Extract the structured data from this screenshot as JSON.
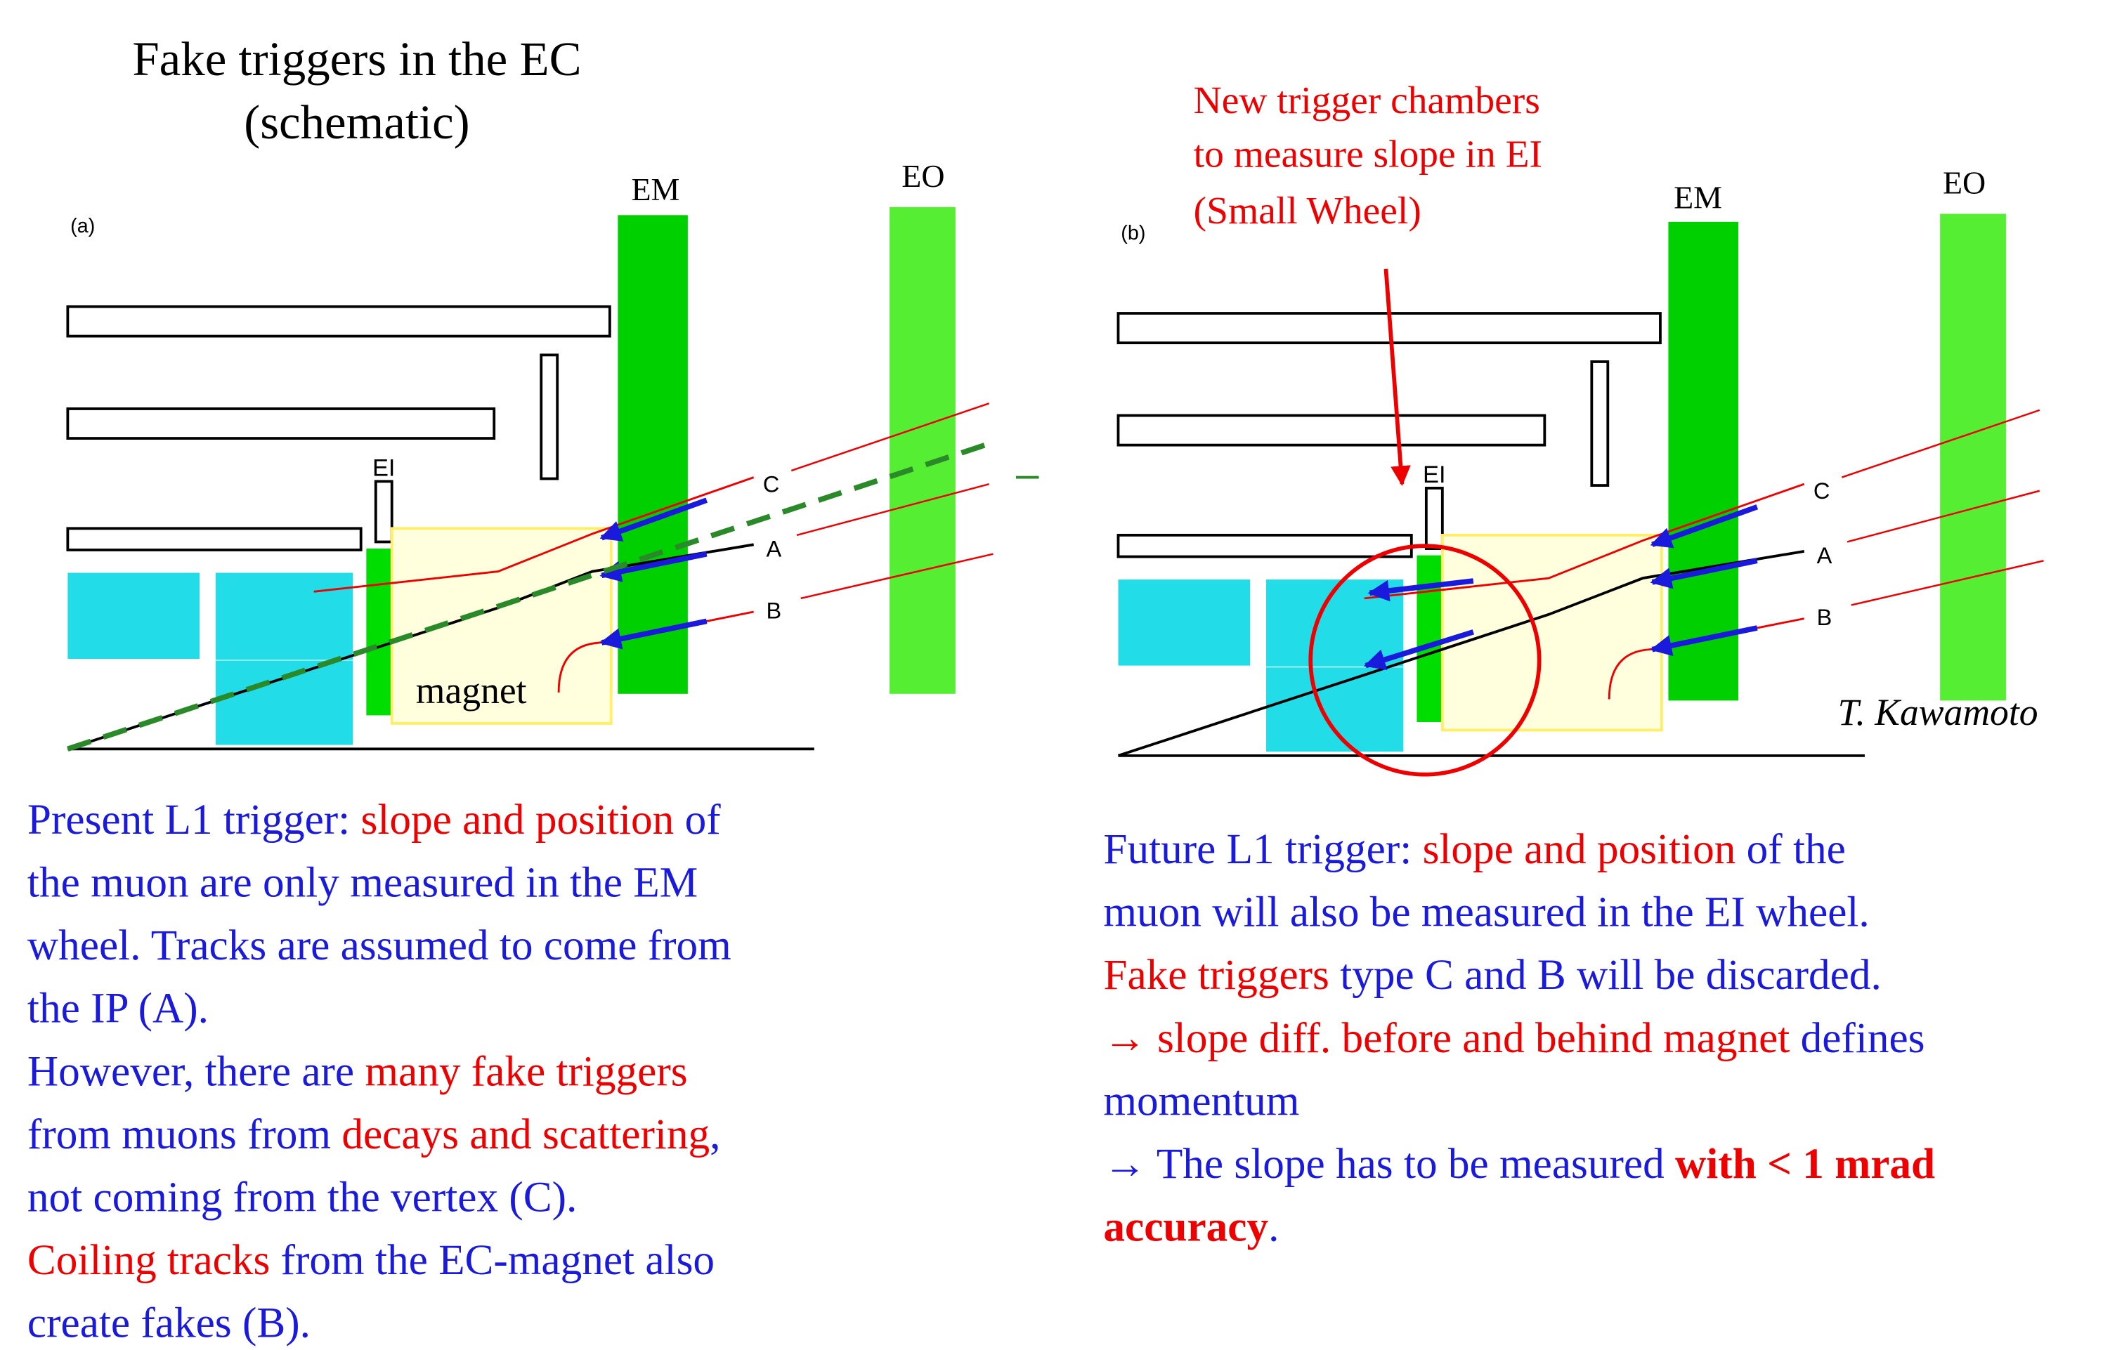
{
  "title": [
    "Fake triggers in the EC",
    "(schematic)"
  ],
  "left": {
    "panel": "(a)",
    "em": "EM",
    "eo": "EO",
    "ei": "EI",
    "magnet": "magnet",
    "c": "C",
    "a": "A",
    "b": "B",
    "lines": [
      [
        {
          "t": "Present L1 trigger: ",
          "c": "blue"
        },
        {
          "t": "slope and position",
          "c": "red"
        },
        {
          "t": " of",
          "c": "blue"
        }
      ],
      [
        {
          "t": "the muon are only measured in the EM",
          "c": "blue"
        }
      ],
      [
        {
          "t": "wheel. Tracks are assumed to come from",
          "c": "blue"
        }
      ],
      [
        {
          "t": "the IP (A).",
          "c": "blue"
        }
      ],
      [
        {
          "t": "However, there are ",
          "c": "blue"
        },
        {
          "t": "many fake triggers",
          "c": "red"
        }
      ],
      [
        {
          "t": "from muons from ",
          "c": "blue"
        },
        {
          "t": "decays and scattering",
          "c": "red"
        },
        {
          "t": ",",
          "c": "blue"
        }
      ],
      [
        {
          "t": "not coming from the vertex (C).",
          "c": "blue"
        }
      ],
      [
        {
          "t": "Coiling tracks",
          "c": "red"
        },
        {
          "t": " from the EC-magnet also",
          "c": "blue"
        }
      ],
      [
        {
          "t": "create fakes (B).",
          "c": "blue"
        }
      ]
    ]
  },
  "right": {
    "panel": "(b)",
    "em": "EM",
    "eo": "EO",
    "ei": "EI",
    "c": "C",
    "a": "A",
    "b": "B",
    "annotation": [
      "New trigger chambers",
      "to measure slope in EI",
      "(Small Wheel)"
    ],
    "credit": "T. Kawamoto",
    "lines": [
      [
        {
          "t": "Future L1 trigger: ",
          "c": "blue"
        },
        {
          "t": "slope and position",
          "c": "red"
        },
        {
          "t": " of the",
          "c": "blue"
        }
      ],
      [
        {
          "t": "muon will also be measured in the EI wheel.",
          "c": "blue"
        }
      ],
      [
        {
          "t": "Fake triggers",
          "c": "red"
        },
        {
          "t": " type C and B will be discarded.",
          "c": "blue"
        }
      ],
      [
        {
          "t": "→ slope diff. before and behind magnet",
          "c": "red"
        },
        {
          "t": " defines",
          "c": "blue"
        }
      ],
      [
        {
          "t": "momentum",
          "c": "blue"
        }
      ],
      [
        {
          "t": "→ The slope has to be measured ",
          "c": "blue"
        },
        {
          "t": "with < 1 mrad",
          "c": "red-bold"
        }
      ],
      [
        {
          "t": "accuracy",
          "c": "red-bold"
        },
        {
          "t": ".",
          "c": "blue"
        }
      ]
    ]
  }
}
